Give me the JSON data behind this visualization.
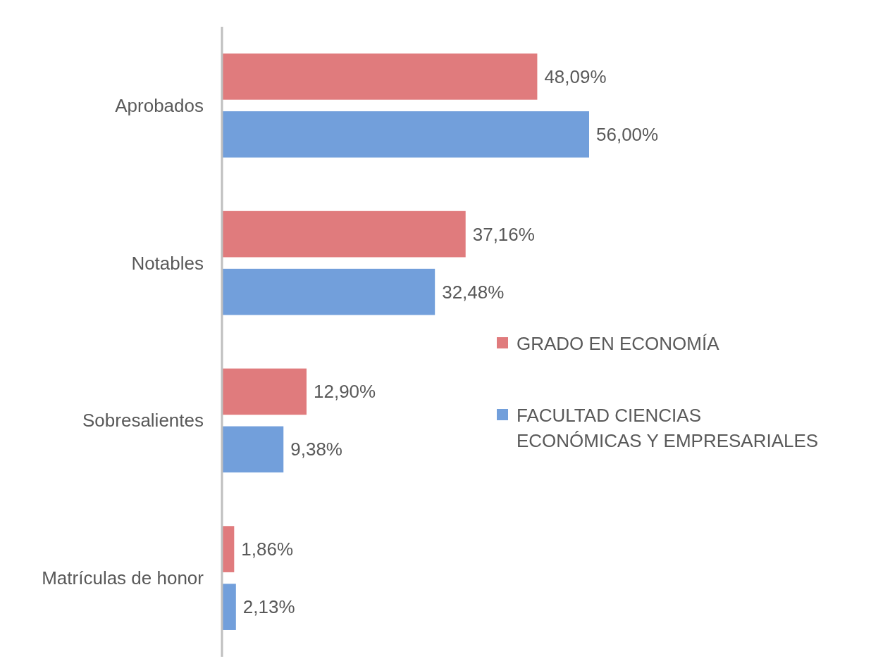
{
  "chart_data": {
    "type": "bar",
    "orientation": "horizontal",
    "categories": [
      "Aprobados",
      "Notables",
      "Sobresalientes",
      "Matrículas de honor"
    ],
    "series": [
      {
        "name": "GRADO EN ECONOMÍA",
        "color": "#e07b7d",
        "values": [
          48.09,
          37.16,
          12.9,
          1.86
        ],
        "value_labels": [
          "48,09%",
          "37,16%",
          "12,90%",
          "1,86%"
        ]
      },
      {
        "name": "FACULTAD CIENCIAS ECONÓMICAS Y EMPRESARIALES",
        "color": "#729fdb",
        "values": [
          56.0,
          32.48,
          9.38,
          2.13
        ],
        "value_labels": [
          "56,00%",
          "32,48%",
          "9,38%",
          "2,13%"
        ]
      }
    ],
    "legend": "right"
  }
}
